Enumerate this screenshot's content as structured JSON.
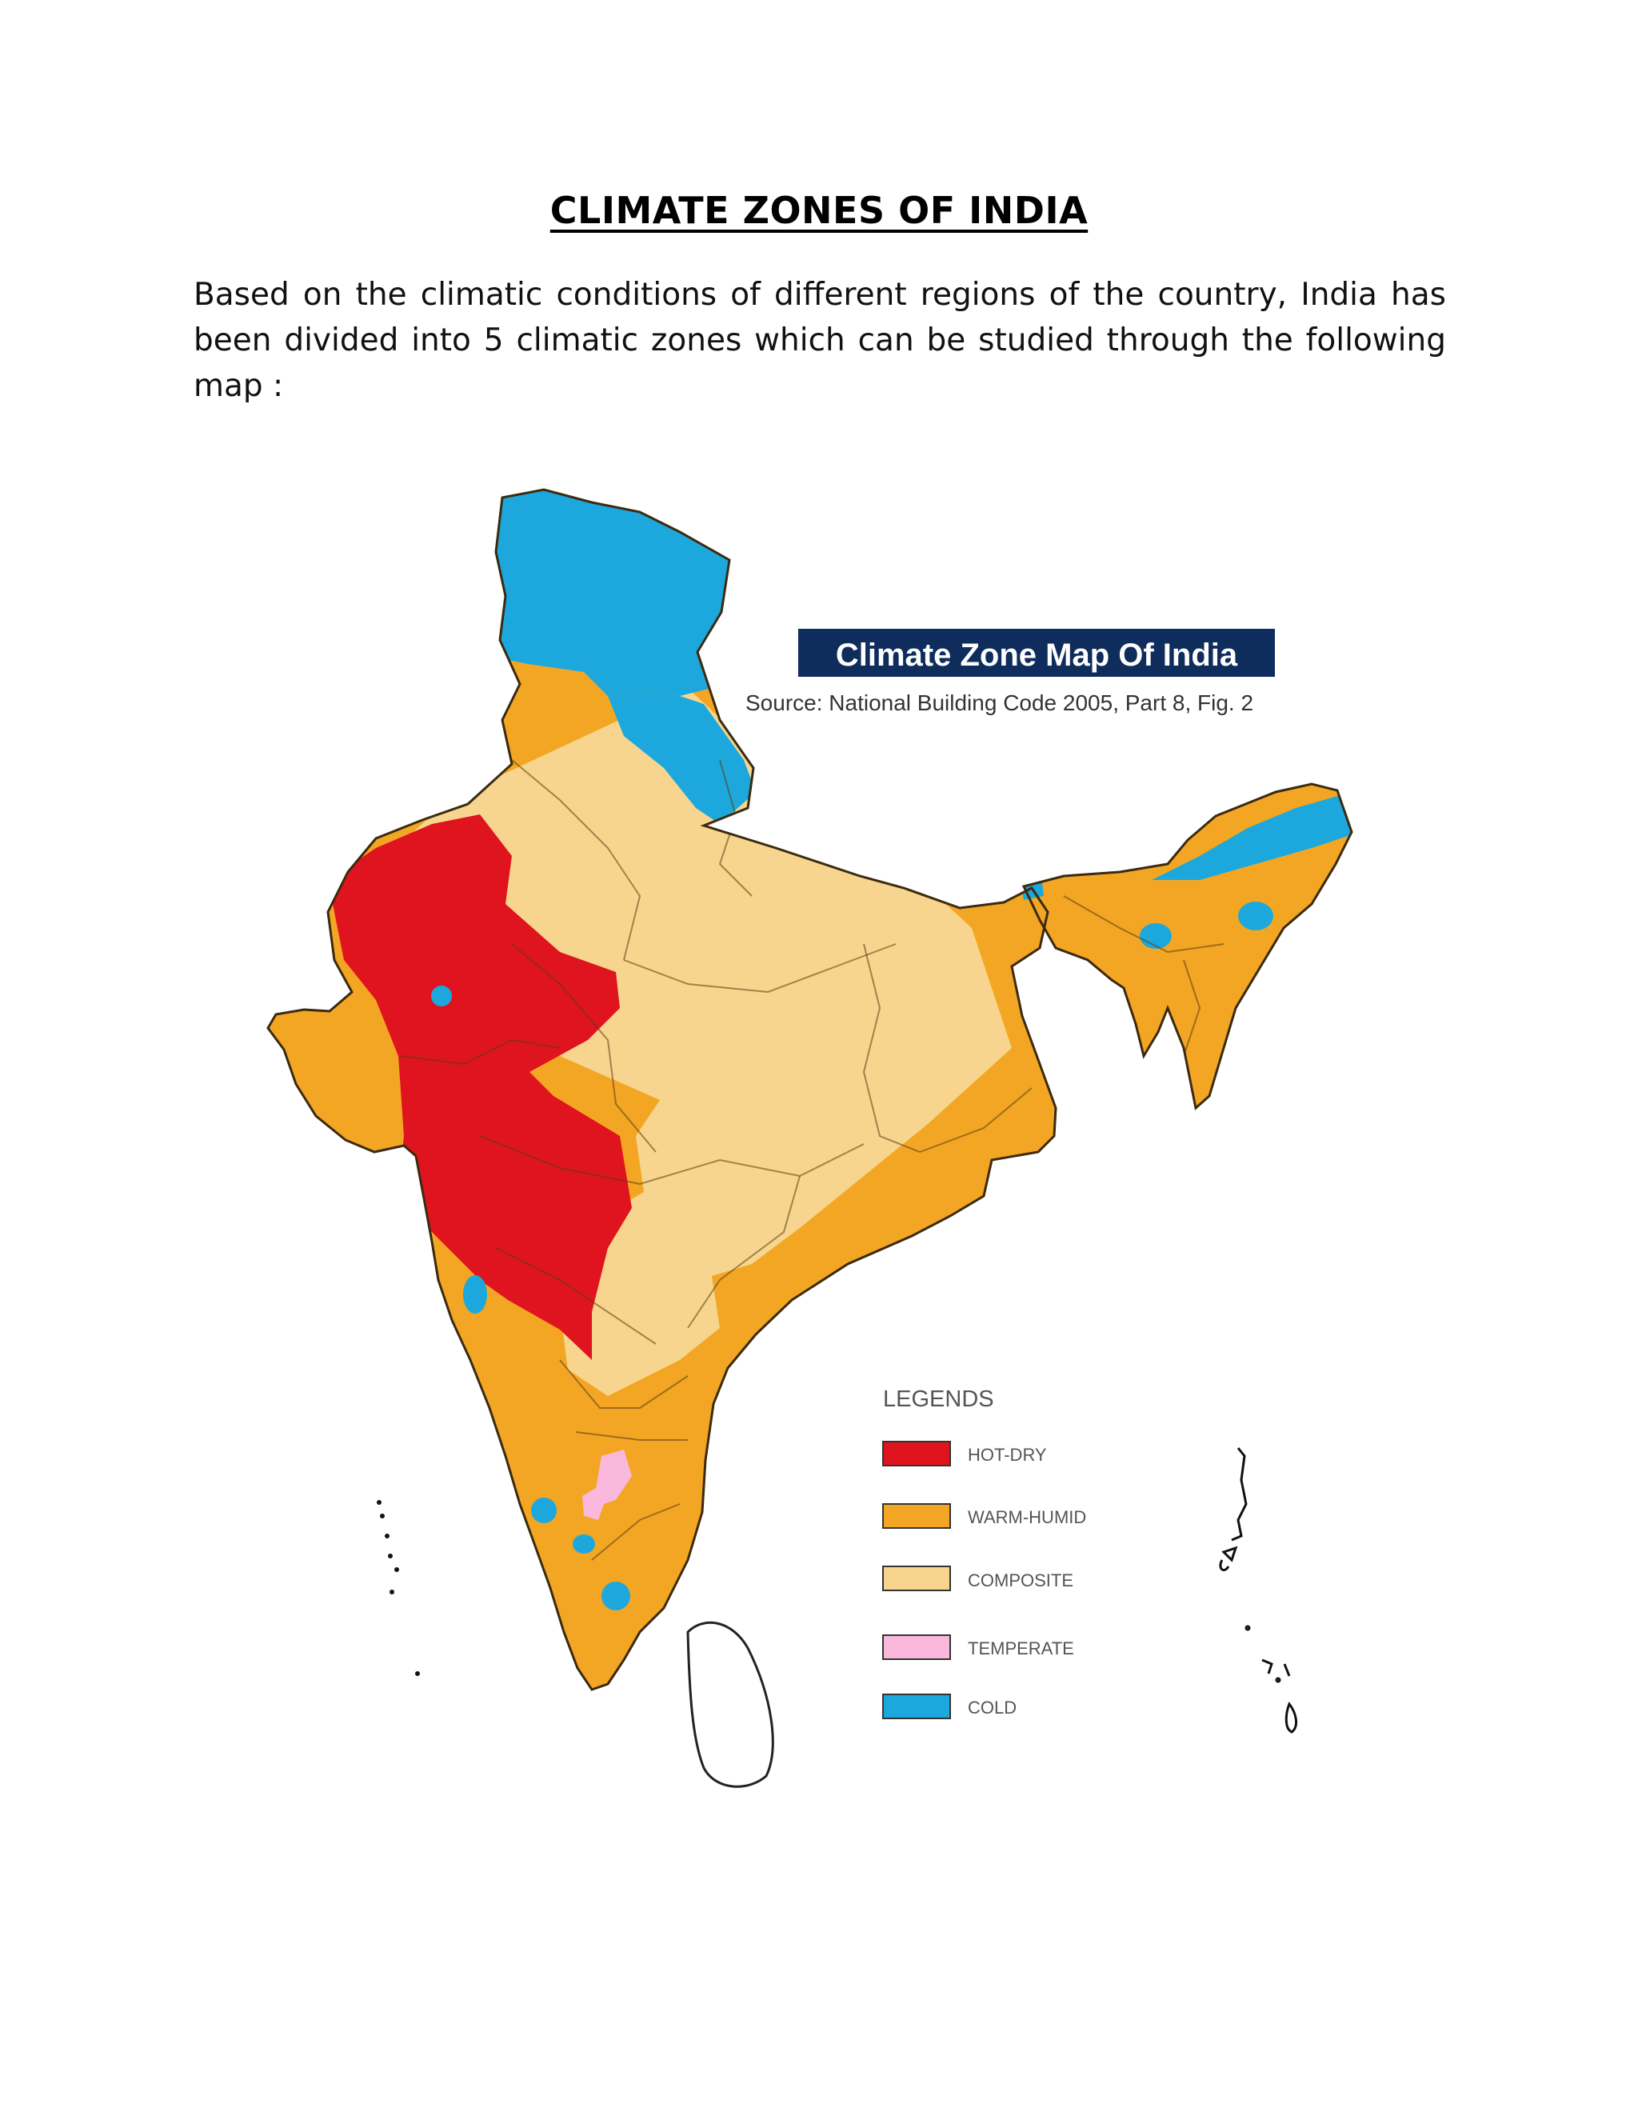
{
  "document": {
    "title": "CLIMATE ZONES OF INDIA",
    "intro": "Based on the climatic conditions of different regions of the country, India has been divided into 5 climatic zones which can be studied through the following map :"
  },
  "map": {
    "title": "Climate Zone Map Of India",
    "source": "Source: National Building Code 2005, Part 8, Fig. 2",
    "legend_heading": "LEGENDS",
    "legend": [
      {
        "label": "HOT-DRY",
        "color": "#e0141f"
      },
      {
        "label": "WARM-HUMID",
        "color": "#f3a623"
      },
      {
        "label": "COMPOSITE",
        "color": "#f7d58e"
      },
      {
        "label": "TEMPERATE",
        "color": "#f9b8dc"
      },
      {
        "label": "COLD",
        "color": "#1ca8dc"
      }
    ]
  }
}
